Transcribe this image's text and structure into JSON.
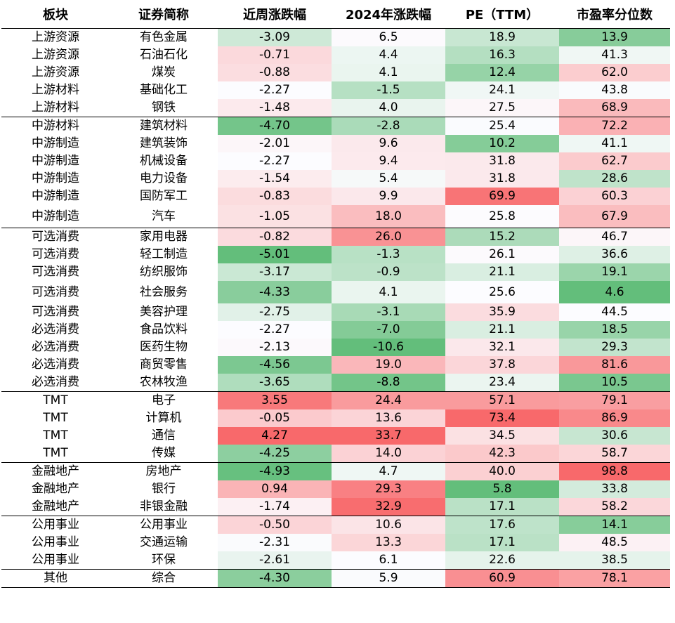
{
  "headers": [
    "板块",
    "证券简称",
    "近周涨跌幅",
    "2024年涨跌幅",
    "PE（TTM）",
    "市盈率分位数"
  ],
  "rows": [
    {
      "sector": "上游资源",
      "name": "有色金属",
      "week": "-3.09",
      "ytd": "6.5",
      "pe": "18.9",
      "pct": "13.9"
    },
    {
      "sector": "上游资源",
      "name": "石油石化",
      "week": "-0.71",
      "ytd": "4.4",
      "pe": "16.3",
      "pct": "41.3"
    },
    {
      "sector": "上游资源",
      "name": "煤炭",
      "week": "-0.88",
      "ytd": "4.1",
      "pe": "12.4",
      "pct": "62.0"
    },
    {
      "sector": "上游材料",
      "name": "基础化工",
      "week": "-2.27",
      "ytd": "-1.5",
      "pe": "24.1",
      "pct": "43.8"
    },
    {
      "sector": "上游材料",
      "name": "钢铁",
      "week": "-1.48",
      "ytd": "4.0",
      "pe": "27.5",
      "pct": "68.9"
    },
    {
      "sector": "中游材料",
      "name": "建筑材料",
      "week": "-4.70",
      "ytd": "-2.8",
      "pe": "25.4",
      "pct": "72.2"
    },
    {
      "sector": "中游制造",
      "name": "建筑装饰",
      "week": "-2.01",
      "ytd": "9.6",
      "pe": "10.2",
      "pct": "41.1"
    },
    {
      "sector": "中游制造",
      "name": "机械设备",
      "week": "-2.27",
      "ytd": "9.4",
      "pe": "31.8",
      "pct": "62.7"
    },
    {
      "sector": "中游制造",
      "name": "电力设备",
      "week": "-1.54",
      "ytd": "5.4",
      "pe": "31.8",
      "pct": "28.6"
    },
    {
      "sector": "中游制造",
      "name": "国防军工",
      "week": "-0.83",
      "ytd": "9.9",
      "pe": "69.9",
      "pct": "60.3"
    },
    {
      "sector": "中游制造",
      "name": "汽车",
      "week": "-1.05",
      "ytd": "18.0",
      "pe": "25.8",
      "pct": "67.9"
    },
    {
      "sector": "可选消费",
      "name": "家用电器",
      "week": "-0.82",
      "ytd": "26.0",
      "pe": "15.2",
      "pct": "46.7"
    },
    {
      "sector": "可选消费",
      "name": "轻工制造",
      "week": "-5.01",
      "ytd": "-1.3",
      "pe": "26.1",
      "pct": "36.6"
    },
    {
      "sector": "可选消费",
      "name": "纺织服饰",
      "week": "-3.17",
      "ytd": "-0.9",
      "pe": "21.1",
      "pct": "19.1"
    },
    {
      "sector": "可选消费",
      "name": "社会服务",
      "week": "-4.33",
      "ytd": "4.1",
      "pe": "25.6",
      "pct": "4.6"
    },
    {
      "sector": "可选消费",
      "name": "美容护理",
      "week": "-2.75",
      "ytd": "-3.1",
      "pe": "35.9",
      "pct": "44.5"
    },
    {
      "sector": "必选消费",
      "name": "食品饮料",
      "week": "-2.27",
      "ytd": "-7.0",
      "pe": "21.1",
      "pct": "18.5"
    },
    {
      "sector": "必选消费",
      "name": "医药生物",
      "week": "-2.13",
      "ytd": "-10.6",
      "pe": "32.1",
      "pct": "29.3"
    },
    {
      "sector": "必选消费",
      "name": "商贸零售",
      "week": "-4.56",
      "ytd": "19.0",
      "pe": "37.8",
      "pct": "81.6"
    },
    {
      "sector": "必选消费",
      "name": "农林牧渔",
      "week": "-3.65",
      "ytd": "-8.8",
      "pe": "23.4",
      "pct": "10.5"
    },
    {
      "sector": "TMT",
      "name": "电子",
      "week": "3.55",
      "ytd": "24.4",
      "pe": "57.1",
      "pct": "79.1"
    },
    {
      "sector": "TMT",
      "name": "计算机",
      "week": "-0.05",
      "ytd": "13.6",
      "pe": "73.4",
      "pct": "86.9"
    },
    {
      "sector": "TMT",
      "name": "通信",
      "week": "4.27",
      "ytd": "33.7",
      "pe": "34.5",
      "pct": "30.6"
    },
    {
      "sector": "TMT",
      "name": "传媒",
      "week": "-4.25",
      "ytd": "14.0",
      "pe": "42.3",
      "pct": "58.7"
    },
    {
      "sector": "金融地产",
      "name": "房地产",
      "week": "-4.93",
      "ytd": "4.7",
      "pe": "40.0",
      "pct": "98.8"
    },
    {
      "sector": "金融地产",
      "name": "银行",
      "week": "0.94",
      "ytd": "29.3",
      "pe": "5.8",
      "pct": "33.8"
    },
    {
      "sector": "金融地产",
      "name": "非银金融",
      "week": "-1.74",
      "ytd": "32.9",
      "pe": "17.1",
      "pct": "58.2"
    },
    {
      "sector": "公用事业",
      "name": "公用事业",
      "week": "-0.50",
      "ytd": "10.6",
      "pe": "17.6",
      "pct": "14.1"
    },
    {
      "sector": "公用事业",
      "name": "交通运输",
      "week": "-2.31",
      "ytd": "13.3",
      "pe": "17.1",
      "pct": "48.5"
    },
    {
      "sector": "公用事业",
      "name": "环保",
      "week": "-2.61",
      "ytd": "6.1",
      "pe": "22.6",
      "pct": "38.5"
    },
    {
      "sector": "其他",
      "name": "综合",
      "week": "-4.30",
      "ytd": "5.9",
      "pe": "60.9",
      "pct": "78.1"
    }
  ]
}
